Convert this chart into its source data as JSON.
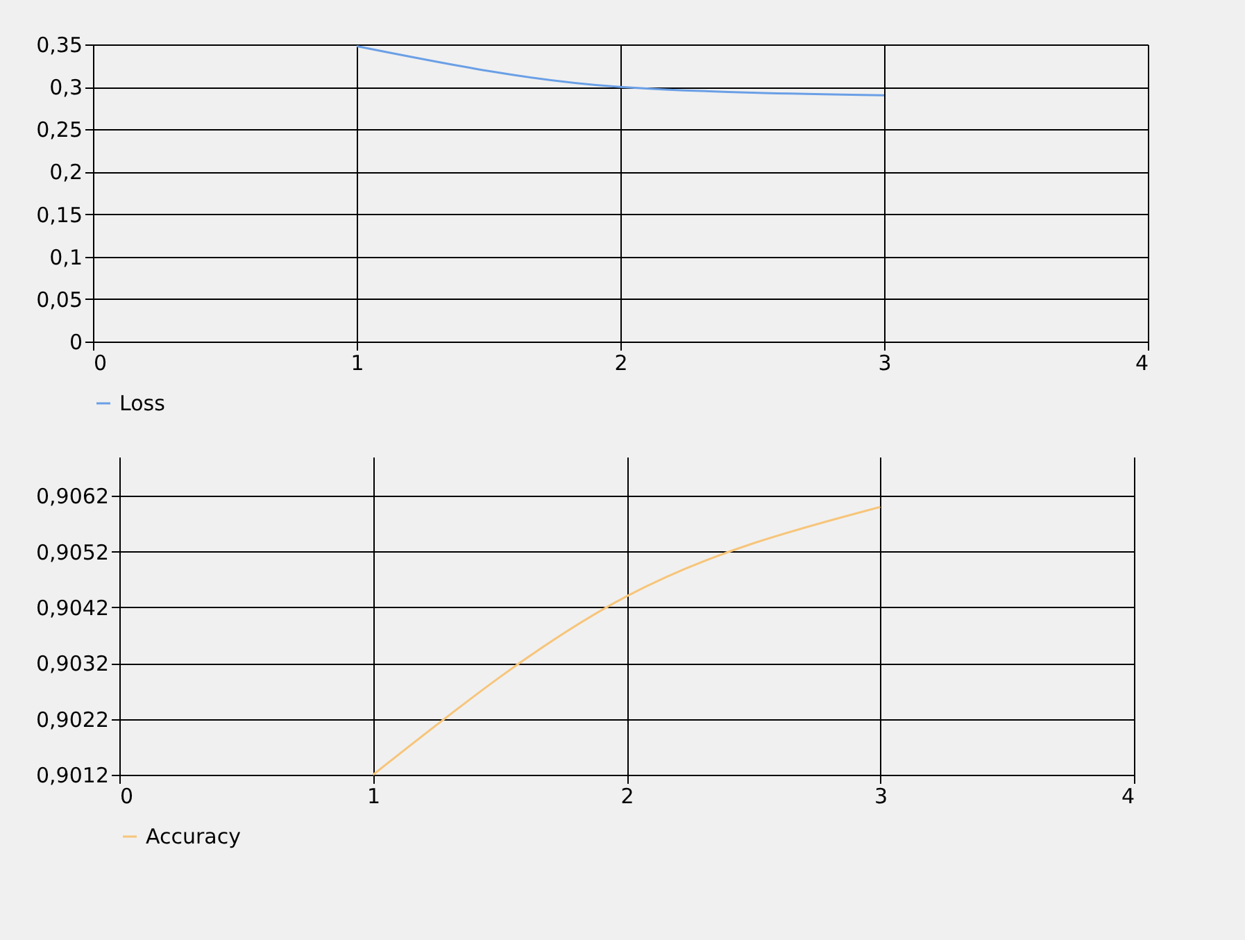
{
  "chart_data": [
    {
      "type": "line",
      "x": [
        1,
        2,
        3
      ],
      "series": [
        {
          "name": "Loss",
          "color": "#6a9fe6",
          "values": [
            0.348,
            0.3,
            0.29
          ]
        }
      ],
      "xlim": [
        0,
        4
      ],
      "xticks": [
        0,
        1,
        2,
        3,
        4
      ],
      "ylim": [
        0,
        0.35
      ],
      "yticks": [
        {
          "value": 0,
          "label": "0"
        },
        {
          "value": 0.05,
          "label": "0,05"
        },
        {
          "value": 0.1,
          "label": "0,1"
        },
        {
          "value": 0.15,
          "label": "0,15"
        },
        {
          "value": 0.2,
          "label": "0,2"
        },
        {
          "value": 0.25,
          "label": "0,25"
        },
        {
          "value": 0.3,
          "label": "0,3"
        },
        {
          "value": 0.35,
          "label": "0,35"
        }
      ],
      "grid": true,
      "legend": "bottom",
      "marker": "none",
      "line_style": "solid"
    },
    {
      "type": "line",
      "x": [
        1,
        2,
        3
      ],
      "series": [
        {
          "name": "Accuracy",
          "color": "#f7c57a",
          "values": [
            0.9012,
            0.9044,
            0.906
          ]
        }
      ],
      "xlim": [
        0,
        4
      ],
      "xticks": [
        0,
        1,
        2,
        3,
        4
      ],
      "ylim": [
        0.9012,
        0.9069
      ],
      "yticks": [
        {
          "value": 0.9012,
          "label": "0,9012"
        },
        {
          "value": 0.9022,
          "label": "0,9022"
        },
        {
          "value": 0.9032,
          "label": "0,9032"
        },
        {
          "value": 0.9042,
          "label": "0,9042"
        },
        {
          "value": 0.9052,
          "label": "0,9052"
        },
        {
          "value": 0.9062,
          "label": "0,9062"
        }
      ],
      "grid": true,
      "legend": "bottom",
      "marker": "none",
      "line_style": "solid"
    }
  ]
}
